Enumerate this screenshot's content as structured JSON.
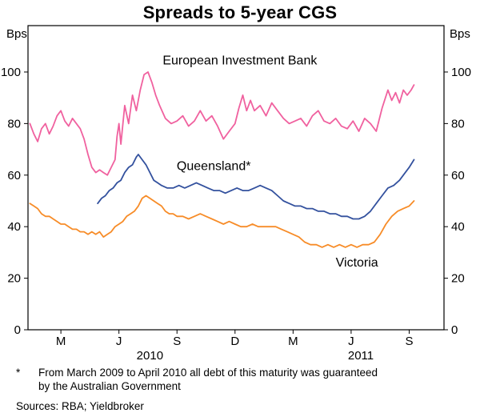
{
  "title": "Spreads to 5-year CGS",
  "y_axis_unit_left": "Bps",
  "y_axis_unit_right": "Bps",
  "footnote": {
    "marker": "*",
    "line1": "From March 2009 to April 2010 all debt of this maturity was guaranteed",
    "line2": "by the Australian Government"
  },
  "sources": "Sources: RBA; Yieldbroker",
  "chart_data": {
    "type": "line",
    "title": "Spreads to 5-year CGS",
    "ylabel": "Bps",
    "ylim": [
      0,
      118
    ],
    "yticks": [
      0,
      20,
      40,
      60,
      80,
      100
    ],
    "x_unit": "months, 1 = Jan 2010",
    "xlim": [
      1.3,
      22.8
    ],
    "grid": false,
    "legend": "inline-annotations",
    "xticks": [
      {
        "x": 3,
        "label": "M"
      },
      {
        "x": 6,
        "label": "J"
      },
      {
        "x": 9,
        "label": "S"
      },
      {
        "x": 12,
        "label": "D"
      },
      {
        "x": 15,
        "label": "M"
      },
      {
        "x": 18,
        "label": "J"
      },
      {
        "x": 21,
        "label": "S"
      }
    ],
    "year_labels": [
      {
        "label": "2010",
        "x": 7.6
      },
      {
        "label": "2011",
        "x": 18.5
      }
    ],
    "series": [
      {
        "name": "European Investment Bank",
        "label": "European Investment Bank",
        "color": "#f0619f",
        "label_pos": {
          "x": 12.25,
          "y": 103
        },
        "points": [
          [
            1.4,
            80
          ],
          [
            1.6,
            76
          ],
          [
            1.8,
            73
          ],
          [
            2.0,
            78
          ],
          [
            2.2,
            80
          ],
          [
            2.4,
            76
          ],
          [
            2.6,
            79
          ],
          [
            2.8,
            83
          ],
          [
            3.0,
            85
          ],
          [
            3.2,
            81
          ],
          [
            3.4,
            79
          ],
          [
            3.6,
            82
          ],
          [
            3.8,
            80
          ],
          [
            4.0,
            78
          ],
          [
            4.2,
            74
          ],
          [
            4.4,
            68
          ],
          [
            4.6,
            63
          ],
          [
            4.8,
            61
          ],
          [
            5.0,
            62
          ],
          [
            5.2,
            61
          ],
          [
            5.4,
            60
          ],
          [
            5.6,
            63
          ],
          [
            5.8,
            66
          ],
          [
            5.9,
            75
          ],
          [
            6.0,
            80
          ],
          [
            6.1,
            72
          ],
          [
            6.3,
            87
          ],
          [
            6.5,
            80
          ],
          [
            6.7,
            91
          ],
          [
            6.9,
            85
          ],
          [
            7.1,
            93
          ],
          [
            7.3,
            99
          ],
          [
            7.5,
            100
          ],
          [
            7.7,
            96
          ],
          [
            7.9,
            91
          ],
          [
            8.1,
            87
          ],
          [
            8.4,
            82
          ],
          [
            8.7,
            80
          ],
          [
            9.0,
            81
          ],
          [
            9.3,
            83
          ],
          [
            9.6,
            79
          ],
          [
            9.9,
            81
          ],
          [
            10.2,
            85
          ],
          [
            10.5,
            81
          ],
          [
            10.8,
            83
          ],
          [
            11.1,
            79
          ],
          [
            11.4,
            74
          ],
          [
            11.7,
            77
          ],
          [
            12.0,
            80
          ],
          [
            12.2,
            86
          ],
          [
            12.4,
            91
          ],
          [
            12.6,
            85
          ],
          [
            12.8,
            89
          ],
          [
            13.0,
            85
          ],
          [
            13.3,
            87
          ],
          [
            13.6,
            83
          ],
          [
            13.9,
            88
          ],
          [
            14.2,
            85
          ],
          [
            14.5,
            82
          ],
          [
            14.8,
            80
          ],
          [
            15.1,
            81
          ],
          [
            15.4,
            82
          ],
          [
            15.7,
            79
          ],
          [
            16.0,
            83
          ],
          [
            16.3,
            85
          ],
          [
            16.6,
            81
          ],
          [
            16.9,
            80
          ],
          [
            17.2,
            82
          ],
          [
            17.5,
            79
          ],
          [
            17.8,
            78
          ],
          [
            18.1,
            81
          ],
          [
            18.4,
            77
          ],
          [
            18.7,
            82
          ],
          [
            19.0,
            80
          ],
          [
            19.3,
            77
          ],
          [
            19.6,
            86
          ],
          [
            19.9,
            93
          ],
          [
            20.1,
            89
          ],
          [
            20.3,
            92
          ],
          [
            20.5,
            88
          ],
          [
            20.7,
            93
          ],
          [
            20.9,
            91
          ],
          [
            21.1,
            93
          ],
          [
            21.25,
            95
          ]
        ]
      },
      {
        "name": "Queensland",
        "label": "Queensland*",
        "color": "#33519e",
        "label_pos": {
          "x": 10.9,
          "y": 62
        },
        "points": [
          [
            4.9,
            49
          ],
          [
            5.1,
            51
          ],
          [
            5.3,
            52
          ],
          [
            5.5,
            54
          ],
          [
            5.7,
            55
          ],
          [
            5.9,
            57
          ],
          [
            6.1,
            58
          ],
          [
            6.3,
            61
          ],
          [
            6.5,
            63
          ],
          [
            6.7,
            64
          ],
          [
            6.9,
            67
          ],
          [
            7.0,
            68
          ],
          [
            7.2,
            66
          ],
          [
            7.4,
            64
          ],
          [
            7.6,
            61
          ],
          [
            7.8,
            58
          ],
          [
            8.0,
            57
          ],
          [
            8.2,
            56
          ],
          [
            8.5,
            55
          ],
          [
            8.8,
            55
          ],
          [
            9.1,
            56
          ],
          [
            9.4,
            55
          ],
          [
            9.7,
            56
          ],
          [
            10.0,
            57
          ],
          [
            10.3,
            56
          ],
          [
            10.6,
            55
          ],
          [
            10.9,
            54
          ],
          [
            11.2,
            54
          ],
          [
            11.5,
            53
          ],
          [
            11.8,
            54
          ],
          [
            12.1,
            55
          ],
          [
            12.4,
            54
          ],
          [
            12.7,
            54
          ],
          [
            13.0,
            55
          ],
          [
            13.3,
            56
          ],
          [
            13.6,
            55
          ],
          [
            13.9,
            54
          ],
          [
            14.2,
            52
          ],
          [
            14.5,
            50
          ],
          [
            14.8,
            49
          ],
          [
            15.1,
            48
          ],
          [
            15.4,
            48
          ],
          [
            15.7,
            47
          ],
          [
            16.0,
            47
          ],
          [
            16.3,
            46
          ],
          [
            16.6,
            46
          ],
          [
            16.9,
            45
          ],
          [
            17.2,
            45
          ],
          [
            17.5,
            44
          ],
          [
            17.8,
            44
          ],
          [
            18.1,
            43
          ],
          [
            18.4,
            43
          ],
          [
            18.7,
            44
          ],
          [
            19.0,
            46
          ],
          [
            19.3,
            49
          ],
          [
            19.6,
            52
          ],
          [
            19.9,
            55
          ],
          [
            20.2,
            56
          ],
          [
            20.5,
            58
          ],
          [
            20.8,
            61
          ],
          [
            21.0,
            63
          ],
          [
            21.25,
            66
          ]
        ]
      },
      {
        "name": "Victoria",
        "label": "Victoria",
        "color": "#f78c28",
        "label_pos": {
          "x": 18.3,
          "y": 24.5
        },
        "points": [
          [
            1.4,
            49
          ],
          [
            1.6,
            48
          ],
          [
            1.8,
            47
          ],
          [
            2.0,
            45
          ],
          [
            2.2,
            44
          ],
          [
            2.4,
            44
          ],
          [
            2.6,
            43
          ],
          [
            2.8,
            42
          ],
          [
            3.0,
            41
          ],
          [
            3.2,
            41
          ],
          [
            3.4,
            40
          ],
          [
            3.6,
            39
          ],
          [
            3.8,
            39
          ],
          [
            4.0,
            38
          ],
          [
            4.2,
            38
          ],
          [
            4.4,
            37
          ],
          [
            4.6,
            38
          ],
          [
            4.8,
            37
          ],
          [
            5.0,
            38
          ],
          [
            5.2,
            36
          ],
          [
            5.4,
            37
          ],
          [
            5.6,
            38
          ],
          [
            5.8,
            40
          ],
          [
            6.0,
            41
          ],
          [
            6.2,
            42
          ],
          [
            6.4,
            44
          ],
          [
            6.6,
            45
          ],
          [
            6.8,
            46
          ],
          [
            7.0,
            48
          ],
          [
            7.2,
            51
          ],
          [
            7.4,
            52
          ],
          [
            7.6,
            51
          ],
          [
            7.8,
            50
          ],
          [
            8.0,
            49
          ],
          [
            8.2,
            48
          ],
          [
            8.4,
            46
          ],
          [
            8.6,
            45
          ],
          [
            8.8,
            45
          ],
          [
            9.0,
            44
          ],
          [
            9.3,
            44
          ],
          [
            9.6,
            43
          ],
          [
            9.9,
            44
          ],
          [
            10.2,
            45
          ],
          [
            10.5,
            44
          ],
          [
            10.8,
            43
          ],
          [
            11.1,
            42
          ],
          [
            11.4,
            41
          ],
          [
            11.7,
            42
          ],
          [
            12.0,
            41
          ],
          [
            12.3,
            40
          ],
          [
            12.6,
            40
          ],
          [
            12.9,
            41
          ],
          [
            13.2,
            40
          ],
          [
            13.5,
            40
          ],
          [
            13.8,
            40
          ],
          [
            14.1,
            40
          ],
          [
            14.4,
            39
          ],
          [
            14.7,
            38
          ],
          [
            15.0,
            37
          ],
          [
            15.3,
            36
          ],
          [
            15.6,
            34
          ],
          [
            15.9,
            33
          ],
          [
            16.2,
            33
          ],
          [
            16.5,
            32
          ],
          [
            16.8,
            33
          ],
          [
            17.1,
            32
          ],
          [
            17.4,
            33
          ],
          [
            17.7,
            32
          ],
          [
            18.0,
            33
          ],
          [
            18.3,
            32
          ],
          [
            18.6,
            33
          ],
          [
            18.9,
            33
          ],
          [
            19.2,
            34
          ],
          [
            19.5,
            37
          ],
          [
            19.8,
            41
          ],
          [
            20.1,
            44
          ],
          [
            20.4,
            46
          ],
          [
            20.7,
            47
          ],
          [
            21.0,
            48
          ],
          [
            21.25,
            50
          ]
        ]
      }
    ]
  }
}
